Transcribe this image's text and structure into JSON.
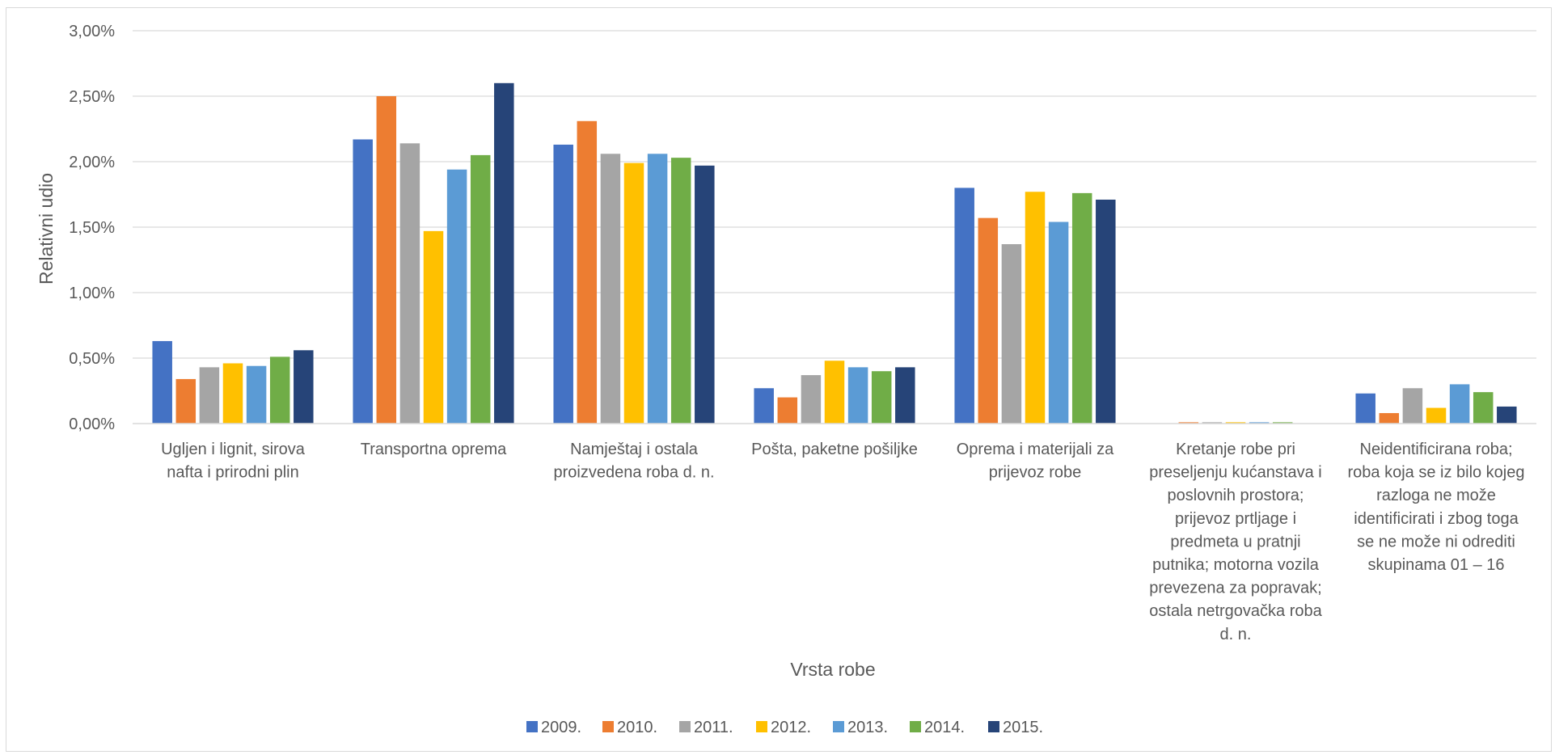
{
  "chart_data": {
    "type": "bar",
    "xlabel": "Vrsta robe",
    "ylabel": "Relativni udio",
    "ylim": [
      0,
      3
    ],
    "yticks": [
      {
        "value": 0,
        "label": "0,00%"
      },
      {
        "value": 0.5,
        "label": "0,50%"
      },
      {
        "value": 1.0,
        "label": "1,00%"
      },
      {
        "value": 1.5,
        "label": "1,50%"
      },
      {
        "value": 2.0,
        "label": "2,00%"
      },
      {
        "value": 2.5,
        "label": "2,50%"
      },
      {
        "value": 3.0,
        "label": "3,00%"
      }
    ],
    "grid": true,
    "legend_position": "bottom",
    "categories": [
      [
        "Ugljen i lignit, sirova",
        "nafta i prirodni plin"
      ],
      [
        "Transportna oprema"
      ],
      [
        "Namještaj i ostala",
        "proizvedena roba d. n."
      ],
      [
        "Pošta, paketne pošiljke"
      ],
      [
        "Oprema i materijali za",
        "prijevoz robe"
      ],
      [
        "Kretanje robe pri",
        "preseljenju kućanstava i",
        "poslovnih prostora;",
        "prijevoz prtljage i",
        "predmeta u pratnji",
        "putnika; motorna vozila",
        "prevezena za popravak;",
        "ostala netrgovačka roba",
        "d. n."
      ],
      [
        "Neidentificirana roba;",
        "roba koja se iz bilo kojeg",
        "razloga ne može",
        "identificirati i zbog toga",
        "se ne može ni odrediti",
        "skupinama 01 – 16"
      ]
    ],
    "series": [
      {
        "name": "2009.",
        "color": "#4472C4",
        "values": [
          0.63,
          2.17,
          2.13,
          0.27,
          1.8,
          0.0,
          0.23
        ]
      },
      {
        "name": "2010.",
        "color": "#ED7D31",
        "values": [
          0.34,
          2.5,
          2.31,
          0.2,
          1.57,
          0.01,
          0.08
        ]
      },
      {
        "name": "2011.",
        "color": "#A5A5A5",
        "values": [
          0.43,
          2.14,
          2.06,
          0.37,
          1.37,
          0.01,
          0.27
        ]
      },
      {
        "name": "2012.",
        "color": "#FFC000",
        "values": [
          0.46,
          1.47,
          1.99,
          0.48,
          1.77,
          0.01,
          0.12
        ]
      },
      {
        "name": "2013.",
        "color": "#5B9BD5",
        "values": [
          0.44,
          1.94,
          2.06,
          0.43,
          1.54,
          0.01,
          0.3
        ]
      },
      {
        "name": "2014.",
        "color": "#70AD47",
        "values": [
          0.51,
          2.05,
          2.03,
          0.4,
          1.76,
          0.01,
          0.24
        ]
      },
      {
        "name": "2015.",
        "color": "#264478",
        "values": [
          0.56,
          2.6,
          1.97,
          0.43,
          1.71,
          0.0,
          0.13
        ]
      }
    ]
  }
}
